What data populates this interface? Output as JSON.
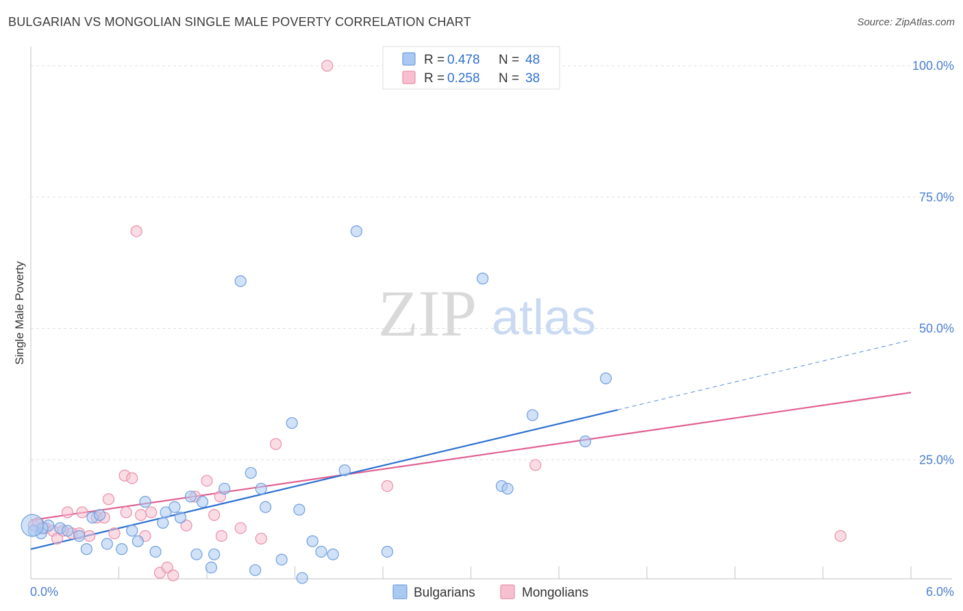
{
  "title": "BULGARIAN VS MONGOLIAN SINGLE MALE POVERTY CORRELATION CHART",
  "source": "Source: ZipAtlas.com",
  "watermark": {
    "zip": "ZIP",
    "atlas": "atlas"
  },
  "colors": {
    "bulgarians_fill": "#a9c8f2",
    "bulgarians_stroke": "#6f9fdc",
    "bulgarians_line": "#2b6fcf",
    "mongolians_fill": "#f6c0d0",
    "mongolians_stroke": "#e98fab",
    "mongolians_line": "#e05f8f",
    "tick_text": "#4a7fcf",
    "grid": "#dddddd"
  },
  "legend": {
    "rows": [
      {
        "r_label": "R = ",
        "r_value": "0.478",
        "n_label": "N = ",
        "n_value": "48"
      },
      {
        "r_label": "R = ",
        "r_value": "0.258",
        "n_label": "N = ",
        "n_value": "38"
      }
    ]
  },
  "chart_data": {
    "type": "scatter",
    "title": "BULGARIAN VS MONGOLIAN SINGLE MALE POVERTY CORRELATION CHART",
    "xlabel": "",
    "ylabel": "Single Male Poverty",
    "xlim": [
      0,
      6
    ],
    "ylim": [
      0,
      100
    ],
    "x_tick_labels": [
      "0.0%",
      "6.0%"
    ],
    "y_ticks": [
      25,
      50,
      75,
      100
    ],
    "y_tick_labels": [
      "25.0%",
      "50.0%",
      "75.0%",
      "100.0%"
    ],
    "grid": true,
    "legend_position": "top-center",
    "series": [
      {
        "name": "Bulgarians",
        "R": 0.478,
        "N": 48,
        "trend": {
          "x0": 0.0,
          "y0": 8.0,
          "x1": 4.0,
          "y1": 34.5,
          "dash_to_x": 6.0,
          "dash_to_y": 47.8
        },
        "points": [
          [
            0.02,
            11.5
          ],
          [
            0.07,
            11.0
          ],
          [
            0.12,
            12.5
          ],
          [
            0.2,
            12.0
          ],
          [
            0.25,
            11.5
          ],
          [
            0.33,
            10.5
          ],
          [
            0.38,
            8.0
          ],
          [
            0.42,
            14.0
          ],
          [
            0.47,
            14.5
          ],
          [
            0.52,
            9.0
          ],
          [
            0.62,
            8.0
          ],
          [
            0.69,
            11.5
          ],
          [
            0.73,
            9.5
          ],
          [
            0.78,
            17.0
          ],
          [
            0.85,
            7.5
          ],
          [
            0.9,
            13.0
          ],
          [
            0.92,
            15.0
          ],
          [
            0.98,
            16.0
          ],
          [
            1.02,
            14.0
          ],
          [
            1.09,
            18.0
          ],
          [
            1.13,
            7.0
          ],
          [
            1.17,
            17.0
          ],
          [
            1.23,
            4.5
          ],
          [
            1.25,
            7.0
          ],
          [
            1.32,
            19.5
          ],
          [
            1.43,
            59.0
          ],
          [
            1.5,
            22.5
          ],
          [
            1.53,
            4.0
          ],
          [
            1.57,
            19.5
          ],
          [
            1.6,
            16.0
          ],
          [
            1.71,
            6.0
          ],
          [
            1.78,
            32.0
          ],
          [
            1.83,
            15.5
          ],
          [
            1.85,
            2.5
          ],
          [
            1.92,
            9.5
          ],
          [
            1.98,
            7.5
          ],
          [
            2.06,
            7.0
          ],
          [
            2.14,
            23.0
          ],
          [
            2.22,
            68.5
          ],
          [
            2.43,
            7.5
          ],
          [
            3.08,
            59.5
          ],
          [
            3.21,
            20.0
          ],
          [
            3.25,
            19.5
          ],
          [
            3.42,
            33.5
          ],
          [
            3.78,
            28.5
          ],
          [
            3.92,
            40.5
          ],
          [
            0.08,
            12.0
          ],
          [
            0.01,
            12.5
          ]
        ]
      },
      {
        "name": "Mongolians",
        "R": 0.258,
        "N": 38,
        "trend": {
          "x0": 0.0,
          "y0": 13.5,
          "x1": 6.0,
          "y1": 37.8
        },
        "points": [
          [
            0.02,
            12.5
          ],
          [
            0.05,
            13.0
          ],
          [
            0.1,
            12.0
          ],
          [
            0.15,
            11.5
          ],
          [
            0.18,
            10.0
          ],
          [
            0.22,
            11.5
          ],
          [
            0.25,
            15.0
          ],
          [
            0.28,
            11.0
          ],
          [
            0.33,
            11.0
          ],
          [
            0.35,
            15.0
          ],
          [
            0.4,
            10.5
          ],
          [
            0.45,
            14.0
          ],
          [
            0.5,
            14.0
          ],
          [
            0.53,
            17.5
          ],
          [
            0.57,
            11.0
          ],
          [
            0.65,
            15.0
          ],
          [
            0.64,
            22.0
          ],
          [
            0.69,
            21.5
          ],
          [
            0.72,
            68.5
          ],
          [
            0.75,
            14.5
          ],
          [
            0.78,
            10.5
          ],
          [
            0.82,
            15.0
          ],
          [
            0.88,
            3.5
          ],
          [
            0.93,
            4.5
          ],
          [
            0.97,
            3.0
          ],
          [
            1.06,
            12.5
          ],
          [
            1.12,
            18.0
          ],
          [
            1.2,
            21.0
          ],
          [
            1.25,
            14.5
          ],
          [
            1.29,
            18.0
          ],
          [
            1.3,
            10.5
          ],
          [
            1.43,
            12.0
          ],
          [
            1.57,
            10.0
          ],
          [
            1.67,
            28.0
          ],
          [
            2.02,
            100.0
          ],
          [
            2.43,
            20.0
          ],
          [
            3.44,
            24.0
          ],
          [
            5.52,
            10.5
          ]
        ]
      }
    ]
  }
}
